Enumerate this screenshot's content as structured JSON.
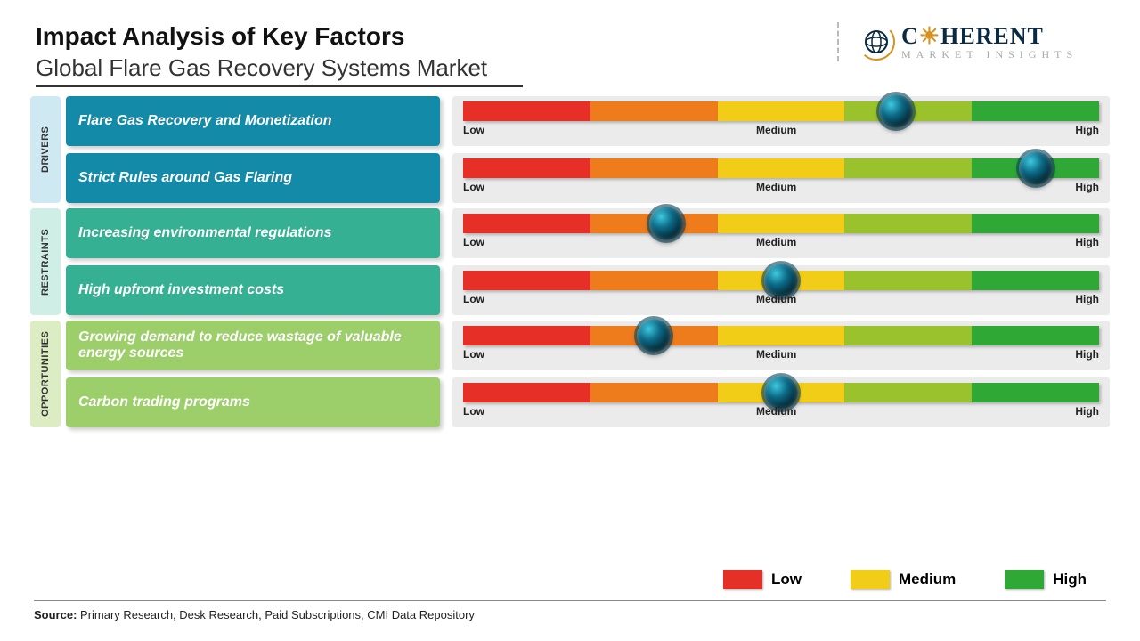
{
  "header": {
    "title": "Impact Analysis of Key Factors",
    "subtitle": "Global Flare Gas Recovery Systems Market"
  },
  "logo": {
    "name_part1": "C",
    "name_part2": "HERENT",
    "tagline": "MARKET INSIGHTS",
    "icon_color": "#d9901a",
    "text_color": "#0a2a43"
  },
  "gauge": {
    "segments": [
      {
        "color": "#e63027"
      },
      {
        "color": "#ee7c1d"
      },
      {
        "color": "#f2cd17"
      },
      {
        "color": "#99c22c"
      },
      {
        "color": "#2fa836"
      }
    ],
    "low_label": "Low",
    "medium_label": "Medium",
    "high_label": "High",
    "track_background": "#ebebeb"
  },
  "categories": [
    {
      "label": "DRIVERS",
      "label_bg": "#cfe9f2",
      "factor_bg": "#138aa8",
      "items": [
        {
          "text": "Flare Gas Recovery and Monetization",
          "knob_position_pct": 68
        },
        {
          "text": "Strict Rules around Gas Flaring",
          "knob_position_pct": 90
        }
      ]
    },
    {
      "label": "RESTRAINTS",
      "label_bg": "#cfeee6",
      "factor_bg": "#35b093",
      "items": [
        {
          "text": "Increasing environmental regulations",
          "knob_position_pct": 32
        },
        {
          "text": "High upfront investment costs",
          "knob_position_pct": 50
        }
      ]
    },
    {
      "label": "OPPORTUNITIES",
      "label_bg": "#dcecc3",
      "factor_bg": "#9cce6a",
      "items": [
        {
          "text": "Growing demand to reduce wastage of valuable energy sources",
          "knob_position_pct": 30
        },
        {
          "text": "Carbon trading programs",
          "knob_position_pct": 50
        }
      ]
    }
  ],
  "legend": {
    "items": [
      {
        "label": "Low",
        "color": "#e53027"
      },
      {
        "label": "Medium",
        "color": "#f2cd17"
      },
      {
        "label": "High",
        "color": "#2fa836"
      }
    ]
  },
  "source": {
    "prefix": "Source:",
    "text": " Primary Research, Desk Research, Paid Subscriptions, CMI Data Repository"
  }
}
